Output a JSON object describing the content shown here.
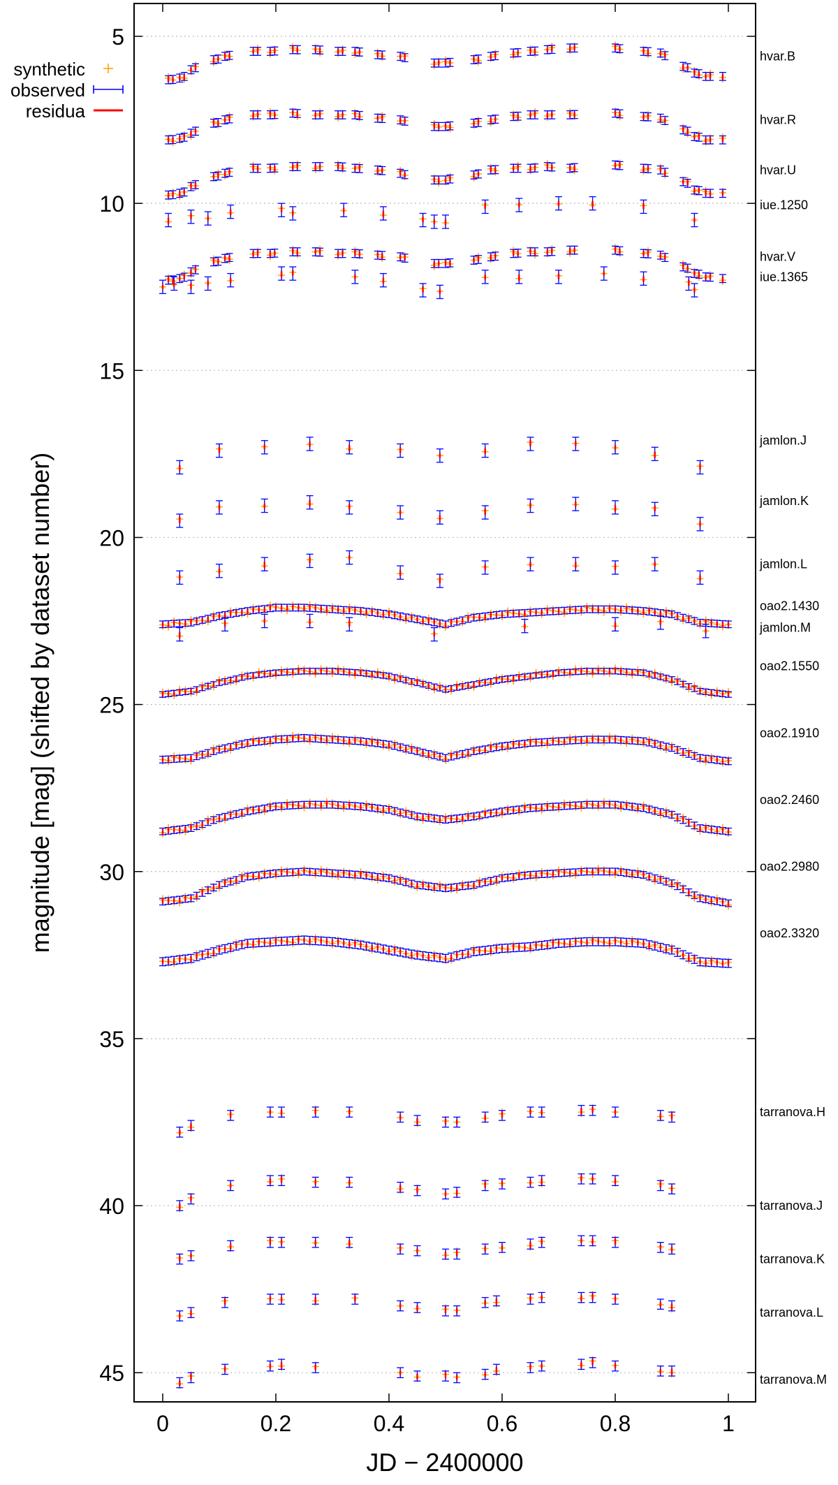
{
  "chart_data": {
    "type": "scatter",
    "xlabel": "JD − 2400000",
    "ylabel": "magnitude [mag] (shifted by dataset number)",
    "xlim": [
      -0.05,
      1.05
    ],
    "ylim": [
      3.9,
      46.0
    ],
    "y_inverted": true,
    "x_ticks": [
      0,
      0.2,
      0.4,
      0.6,
      0.8,
      1
    ],
    "x_tick_labels": [
      "0",
      "0.2",
      "0.4",
      "0.6",
      "0.8",
      "1"
    ],
    "y_ticks": [
      5,
      10,
      15,
      20,
      25,
      30,
      35,
      40,
      45
    ],
    "y_tick_labels": [
      "5",
      "10",
      "15",
      "20",
      "25",
      "30",
      "35",
      "40",
      "45"
    ],
    "grid": "horizontal dotted",
    "legend": {
      "position": "top-left",
      "entries": [
        {
          "label": "synthetic",
          "color": "#ffa500",
          "marker": "plus"
        },
        {
          "label": "observed",
          "color": "#0000ff",
          "marker": "errorbar"
        },
        {
          "label": "residua",
          "color": "#ff0000",
          "marker": "line"
        }
      ]
    },
    "colors": {
      "synthetic": "#ffa500",
      "observed": "#0000ff",
      "residua": "#ff0000"
    },
    "dataset_labels": [
      {
        "name": "hvar.B",
        "y": 5.6
      },
      {
        "name": "hvar.R",
        "y": 7.5
      },
      {
        "name": "hvar.U",
        "y": 9.0
      },
      {
        "name": "iue.1250",
        "y": 10.05
      },
      {
        "name": "hvar.V",
        "y": 11.6
      },
      {
        "name": "iue.1365",
        "y": 12.2
      },
      {
        "name": "jamlon.J",
        "y": 17.1
      },
      {
        "name": "jamlon.K",
        "y": 18.9
      },
      {
        "name": "jamlon.L",
        "y": 20.8
      },
      {
        "name": "oao2.1430",
        "y": 22.05
      },
      {
        "name": "jamlon.M",
        "y": 22.7
      },
      {
        "name": "oao2.1550",
        "y": 23.85
      },
      {
        "name": "oao2.1910",
        "y": 25.85
      },
      {
        "name": "oao2.2460",
        "y": 27.85
      },
      {
        "name": "oao2.2980",
        "y": 29.85
      },
      {
        "name": "oao2.3320",
        "y": 31.85
      },
      {
        "name": "tarranova.H",
        "y": 37.2
      },
      {
        "name": "tarranova.J",
        "y": 40.0
      },
      {
        "name": "tarranova.K",
        "y": 41.6
      },
      {
        "name": "tarranova.L",
        "y": 43.2
      },
      {
        "name": "tarranova.M",
        "y": 45.2
      }
    ],
    "series": [
      {
        "name": "hvar.B",
        "style": "dense",
        "err": 0.12,
        "x": [
          0.01,
          0.03,
          0.05,
          0.09,
          0.11,
          0.16,
          0.19,
          0.23,
          0.27,
          0.31,
          0.34,
          0.38,
          0.42,
          0.48,
          0.5,
          0.55,
          0.58,
          0.62,
          0.65,
          0.68,
          0.72,
          0.8,
          0.85,
          0.88,
          0.92,
          0.94,
          0.96,
          0.99
        ],
        "y": [
          6.3,
          6.25,
          6.0,
          5.7,
          5.6,
          5.45,
          5.45,
          5.4,
          5.4,
          5.45,
          5.45,
          5.55,
          5.6,
          5.8,
          5.8,
          5.7,
          5.6,
          5.5,
          5.45,
          5.4,
          5.35,
          5.35,
          5.45,
          5.5,
          5.9,
          6.1,
          6.2,
          6.2
        ]
      },
      {
        "name": "hvar.R",
        "style": "dense",
        "err": 0.12,
        "x": [
          0.01,
          0.03,
          0.05,
          0.09,
          0.11,
          0.16,
          0.19,
          0.23,
          0.27,
          0.31,
          0.34,
          0.38,
          0.42,
          0.48,
          0.5,
          0.55,
          0.58,
          0.62,
          0.65,
          0.68,
          0.72,
          0.8,
          0.85,
          0.88,
          0.92,
          0.94,
          0.96,
          0.99
        ],
        "y": [
          8.1,
          8.05,
          7.9,
          7.6,
          7.5,
          7.35,
          7.35,
          7.3,
          7.35,
          7.35,
          7.35,
          7.45,
          7.5,
          7.7,
          7.7,
          7.6,
          7.5,
          7.4,
          7.35,
          7.35,
          7.35,
          7.3,
          7.4,
          7.45,
          7.8,
          8.0,
          8.1,
          8.1
        ]
      },
      {
        "name": "hvar.U",
        "style": "dense",
        "err": 0.12,
        "x": [
          0.01,
          0.03,
          0.05,
          0.09,
          0.11,
          0.16,
          0.19,
          0.23,
          0.27,
          0.31,
          0.34,
          0.38,
          0.42,
          0.48,
          0.5,
          0.55,
          0.58,
          0.62,
          0.65,
          0.68,
          0.72,
          0.8,
          0.85,
          0.88,
          0.92,
          0.94,
          0.96,
          0.99
        ],
        "y": [
          9.75,
          9.7,
          9.5,
          9.2,
          9.1,
          8.95,
          8.95,
          8.9,
          8.9,
          8.9,
          8.95,
          9.0,
          9.1,
          9.3,
          9.3,
          9.15,
          9.0,
          8.95,
          8.95,
          8.9,
          8.95,
          8.85,
          8.95,
          9.0,
          9.35,
          9.6,
          9.7,
          9.7
        ]
      },
      {
        "name": "iue.1250",
        "style": "sparse",
        "err": 0.2,
        "x": [
          0.01,
          0.05,
          0.08,
          0.12,
          0.21,
          0.23,
          0.32,
          0.39,
          0.46,
          0.48,
          0.5,
          0.57,
          0.63,
          0.7,
          0.76,
          0.85,
          0.94
        ],
        "y": [
          10.5,
          10.4,
          10.45,
          10.25,
          10.2,
          10.3,
          10.2,
          10.3,
          10.5,
          10.55,
          10.55,
          10.1,
          10.05,
          10.0,
          10.0,
          10.1,
          10.5
        ]
      },
      {
        "name": "hvar.V",
        "style": "dense",
        "err": 0.12,
        "x": [
          0.01,
          0.03,
          0.05,
          0.09,
          0.11,
          0.16,
          0.19,
          0.23,
          0.27,
          0.31,
          0.34,
          0.38,
          0.42,
          0.48,
          0.5,
          0.55,
          0.58,
          0.62,
          0.65,
          0.68,
          0.72,
          0.8,
          0.85,
          0.88,
          0.92,
          0.94,
          0.96,
          0.99
        ],
        "y": [
          12.3,
          12.25,
          12.05,
          11.75,
          11.65,
          11.5,
          11.5,
          11.45,
          11.45,
          11.5,
          11.5,
          11.55,
          11.6,
          11.8,
          11.8,
          11.7,
          11.6,
          11.5,
          11.45,
          11.45,
          11.4,
          11.4,
          11.5,
          11.55,
          11.9,
          12.1,
          12.2,
          12.25
        ]
      },
      {
        "name": "iue.1365",
        "style": "sparse",
        "err": 0.2,
        "x": [
          0.0,
          0.02,
          0.05,
          0.08,
          0.12,
          0.21,
          0.23,
          0.34,
          0.39,
          0.46,
          0.49,
          0.57,
          0.63,
          0.7,
          0.78,
          0.85,
          0.93,
          0.94
        ],
        "y": [
          12.5,
          12.4,
          12.5,
          12.4,
          12.3,
          12.1,
          12.1,
          12.2,
          12.3,
          12.6,
          12.65,
          12.2,
          12.2,
          12.2,
          12.1,
          12.25,
          12.4,
          12.6
        ]
      },
      {
        "name": "jamlon.J",
        "style": "sparse",
        "err": 0.2,
        "x": [
          0.03,
          0.1,
          0.18,
          0.26,
          0.33,
          0.42,
          0.49,
          0.57,
          0.65,
          0.73,
          0.8,
          0.87,
          0.95
        ],
        "y": [
          17.9,
          17.4,
          17.3,
          17.2,
          17.3,
          17.4,
          17.55,
          17.4,
          17.2,
          17.2,
          17.3,
          17.5,
          17.9
        ]
      },
      {
        "name": "jamlon.K",
        "style": "sparse",
        "err": 0.2,
        "x": [
          0.03,
          0.1,
          0.18,
          0.26,
          0.33,
          0.42,
          0.49,
          0.57,
          0.65,
          0.73,
          0.8,
          0.87,
          0.95
        ],
        "y": [
          19.5,
          19.1,
          19.05,
          18.95,
          19.1,
          19.25,
          19.4,
          19.25,
          19.05,
          19.0,
          19.1,
          19.15,
          19.6
        ]
      },
      {
        "name": "jamlon.L",
        "style": "sparse",
        "err": 0.2,
        "x": [
          0.03,
          0.1,
          0.18,
          0.26,
          0.33,
          0.42,
          0.49,
          0.57,
          0.65,
          0.73,
          0.8,
          0.87,
          0.95
        ],
        "y": [
          21.2,
          21.0,
          20.8,
          20.7,
          20.6,
          21.05,
          21.3,
          20.9,
          20.8,
          20.8,
          20.9,
          20.8,
          21.2
        ]
      },
      {
        "name": "oao2.1430",
        "style": "continuous",
        "err": 0.1,
        "x": [
          0.0,
          0.05,
          0.1,
          0.15,
          0.2,
          0.25,
          0.3,
          0.35,
          0.4,
          0.45,
          0.5,
          0.55,
          0.6,
          0.65,
          0.7,
          0.75,
          0.8,
          0.85,
          0.9,
          0.95,
          1.0
        ],
        "y": [
          22.6,
          22.55,
          22.35,
          22.2,
          22.1,
          22.1,
          22.15,
          22.2,
          22.3,
          22.45,
          22.6,
          22.4,
          22.3,
          22.25,
          22.2,
          22.15,
          22.15,
          22.2,
          22.3,
          22.55,
          22.6
        ]
      },
      {
        "name": "jamlon.M",
        "style": "sparse",
        "err": 0.2,
        "x": [
          0.03,
          0.11,
          0.18,
          0.26,
          0.33,
          0.48,
          0.64,
          0.8,
          0.88,
          0.96
        ],
        "y": [
          22.9,
          22.6,
          22.5,
          22.5,
          22.6,
          22.9,
          22.65,
          22.6,
          22.55,
          22.8
        ]
      },
      {
        "name": "oao2.1550",
        "style": "continuous",
        "err": 0.08,
        "x": [
          0.0,
          0.05,
          0.1,
          0.15,
          0.2,
          0.25,
          0.3,
          0.35,
          0.4,
          0.45,
          0.5,
          0.55,
          0.6,
          0.65,
          0.7,
          0.75,
          0.8,
          0.85,
          0.9,
          0.95,
          1.0
        ],
        "y": [
          24.7,
          24.6,
          24.35,
          24.15,
          24.05,
          24.0,
          24.0,
          24.05,
          24.15,
          24.35,
          24.55,
          24.4,
          24.25,
          24.15,
          24.05,
          24.0,
          24.0,
          24.05,
          24.25,
          24.6,
          24.7
        ]
      },
      {
        "name": "oao2.1910",
        "style": "continuous",
        "err": 0.1,
        "x": [
          0.0,
          0.05,
          0.1,
          0.15,
          0.2,
          0.25,
          0.3,
          0.35,
          0.4,
          0.45,
          0.5,
          0.55,
          0.6,
          0.65,
          0.7,
          0.75,
          0.8,
          0.85,
          0.9,
          0.95,
          1.0
        ],
        "y": [
          26.65,
          26.6,
          26.35,
          26.15,
          26.05,
          26.0,
          26.05,
          26.1,
          26.2,
          26.4,
          26.6,
          26.4,
          26.25,
          26.15,
          26.1,
          26.05,
          26.05,
          26.1,
          26.3,
          26.6,
          26.7
        ]
      },
      {
        "name": "oao2.2460",
        "style": "continuous",
        "err": 0.1,
        "x": [
          0.0,
          0.05,
          0.1,
          0.15,
          0.2,
          0.25,
          0.3,
          0.35,
          0.4,
          0.45,
          0.5,
          0.55,
          0.6,
          0.65,
          0.7,
          0.75,
          0.8,
          0.85,
          0.9,
          0.95,
          1.0
        ],
        "y": [
          28.8,
          28.7,
          28.4,
          28.2,
          28.05,
          28.0,
          28.0,
          28.05,
          28.15,
          28.35,
          28.45,
          28.35,
          28.2,
          28.1,
          28.05,
          28.0,
          28.0,
          28.1,
          28.3,
          28.7,
          28.8
        ]
      },
      {
        "name": "oao2.2980",
        "style": "continuous",
        "err": 0.1,
        "x": [
          0.0,
          0.05,
          0.1,
          0.15,
          0.2,
          0.25,
          0.3,
          0.35,
          0.4,
          0.45,
          0.5,
          0.55,
          0.6,
          0.65,
          0.7,
          0.75,
          0.8,
          0.85,
          0.9,
          0.95,
          1.0
        ],
        "y": [
          30.9,
          30.8,
          30.4,
          30.15,
          30.05,
          30.0,
          30.05,
          30.1,
          30.2,
          30.4,
          30.5,
          30.4,
          30.2,
          30.1,
          30.05,
          30.0,
          30.0,
          30.1,
          30.35,
          30.8,
          30.95
        ]
      },
      {
        "name": "oao2.3320",
        "style": "continuous",
        "err": 0.12,
        "x": [
          0.0,
          0.05,
          0.1,
          0.15,
          0.2,
          0.25,
          0.3,
          0.35,
          0.4,
          0.45,
          0.5,
          0.55,
          0.6,
          0.65,
          0.7,
          0.75,
          0.8,
          0.85,
          0.9,
          0.95,
          1.0
        ],
        "y": [
          32.7,
          32.6,
          32.35,
          32.15,
          32.1,
          32.05,
          32.1,
          32.2,
          32.35,
          32.5,
          32.6,
          32.4,
          32.3,
          32.25,
          32.15,
          32.1,
          32.1,
          32.15,
          32.35,
          32.7,
          32.75
        ]
      },
      {
        "name": "tarranova.H",
        "style": "sparse",
        "err": 0.15,
        "x": [
          0.03,
          0.05,
          0.12,
          0.19,
          0.21,
          0.27,
          0.33,
          0.42,
          0.45,
          0.5,
          0.52,
          0.57,
          0.6,
          0.65,
          0.67,
          0.74,
          0.76,
          0.8,
          0.88,
          0.9
        ],
        "y": [
          37.8,
          37.6,
          37.3,
          37.2,
          37.2,
          37.2,
          37.2,
          37.35,
          37.45,
          37.5,
          37.5,
          37.35,
          37.3,
          37.2,
          37.2,
          37.15,
          37.15,
          37.2,
          37.3,
          37.35
        ]
      },
      {
        "name": "tarranova.J",
        "style": "sparse",
        "err": 0.15,
        "x": [
          0.03,
          0.05,
          0.12,
          0.19,
          0.21,
          0.27,
          0.33,
          0.42,
          0.45,
          0.5,
          0.52,
          0.57,
          0.6,
          0.65,
          0.67,
          0.74,
          0.76,
          0.8,
          0.88,
          0.9
        ],
        "y": [
          40.0,
          39.8,
          39.4,
          39.25,
          39.25,
          39.3,
          39.3,
          39.45,
          39.55,
          39.65,
          39.6,
          39.4,
          39.35,
          39.3,
          39.25,
          39.2,
          39.2,
          39.25,
          39.4,
          39.5
        ]
      },
      {
        "name": "tarranova.K",
        "style": "sparse",
        "err": 0.15,
        "x": [
          0.03,
          0.05,
          0.12,
          0.19,
          0.21,
          0.27,
          0.33,
          0.42,
          0.45,
          0.5,
          0.52,
          0.57,
          0.6,
          0.65,
          0.67,
          0.74,
          0.76,
          0.8,
          0.88,
          0.9
        ],
        "y": [
          41.6,
          41.5,
          41.2,
          41.1,
          41.1,
          41.1,
          41.1,
          41.3,
          41.35,
          41.45,
          41.45,
          41.3,
          41.25,
          41.15,
          41.1,
          41.05,
          41.05,
          41.1,
          41.25,
          41.3
        ]
      },
      {
        "name": "tarranova.L",
        "style": "sparse",
        "err": 0.15,
        "x": [
          0.03,
          0.05,
          0.11,
          0.19,
          0.21,
          0.27,
          0.34,
          0.42,
          0.45,
          0.5,
          0.52,
          0.57,
          0.59,
          0.65,
          0.67,
          0.74,
          0.76,
          0.8,
          0.88,
          0.9
        ],
        "y": [
          43.3,
          43.2,
          42.9,
          42.8,
          42.8,
          42.8,
          42.8,
          43.0,
          43.05,
          43.15,
          43.15,
          42.9,
          42.85,
          42.8,
          42.75,
          42.75,
          42.75,
          42.8,
          42.95,
          43.0
        ]
      },
      {
        "name": "tarranova.M",
        "style": "sparse",
        "err": 0.15,
        "x": [
          0.03,
          0.05,
          0.11,
          0.19,
          0.21,
          0.27,
          0.42,
          0.45,
          0.5,
          0.52,
          0.57,
          0.59,
          0.65,
          0.67,
          0.74,
          0.76,
          0.8,
          0.88,
          0.9
        ],
        "y": [
          45.3,
          45.15,
          44.9,
          44.8,
          44.75,
          44.85,
          45.0,
          45.1,
          45.1,
          45.15,
          45.05,
          44.9,
          44.85,
          44.8,
          44.75,
          44.7,
          44.8,
          44.95,
          44.95
        ]
      }
    ]
  }
}
